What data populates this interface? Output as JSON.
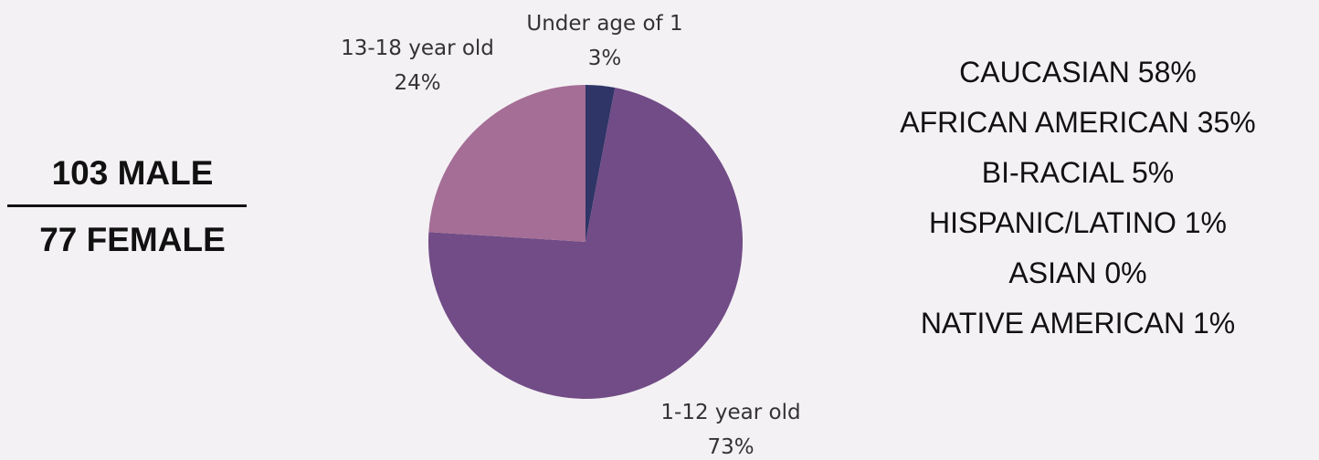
{
  "gender": {
    "male": "103 MALE",
    "female": "77 FEMALE"
  },
  "chart_data": {
    "type": "pie",
    "title": "",
    "categories": [
      "Under age of 1",
      "1-12 year old",
      "13-18 year old"
    ],
    "values": [
      3,
      73,
      24
    ],
    "value_labels": [
      "3%",
      "73%",
      "24%"
    ],
    "colors": [
      "#2f3566",
      "#714c86",
      "#a46e96"
    ],
    "legend": false
  },
  "ethnicity": [
    "CAUCASIAN 58%",
    "AFRICAN AMERICAN 35%",
    "BI-RACIAL 5%",
    "HISPANIC/LATINO 1%",
    "ASIAN 0%",
    "NATIVE AMERICAN 1%"
  ]
}
